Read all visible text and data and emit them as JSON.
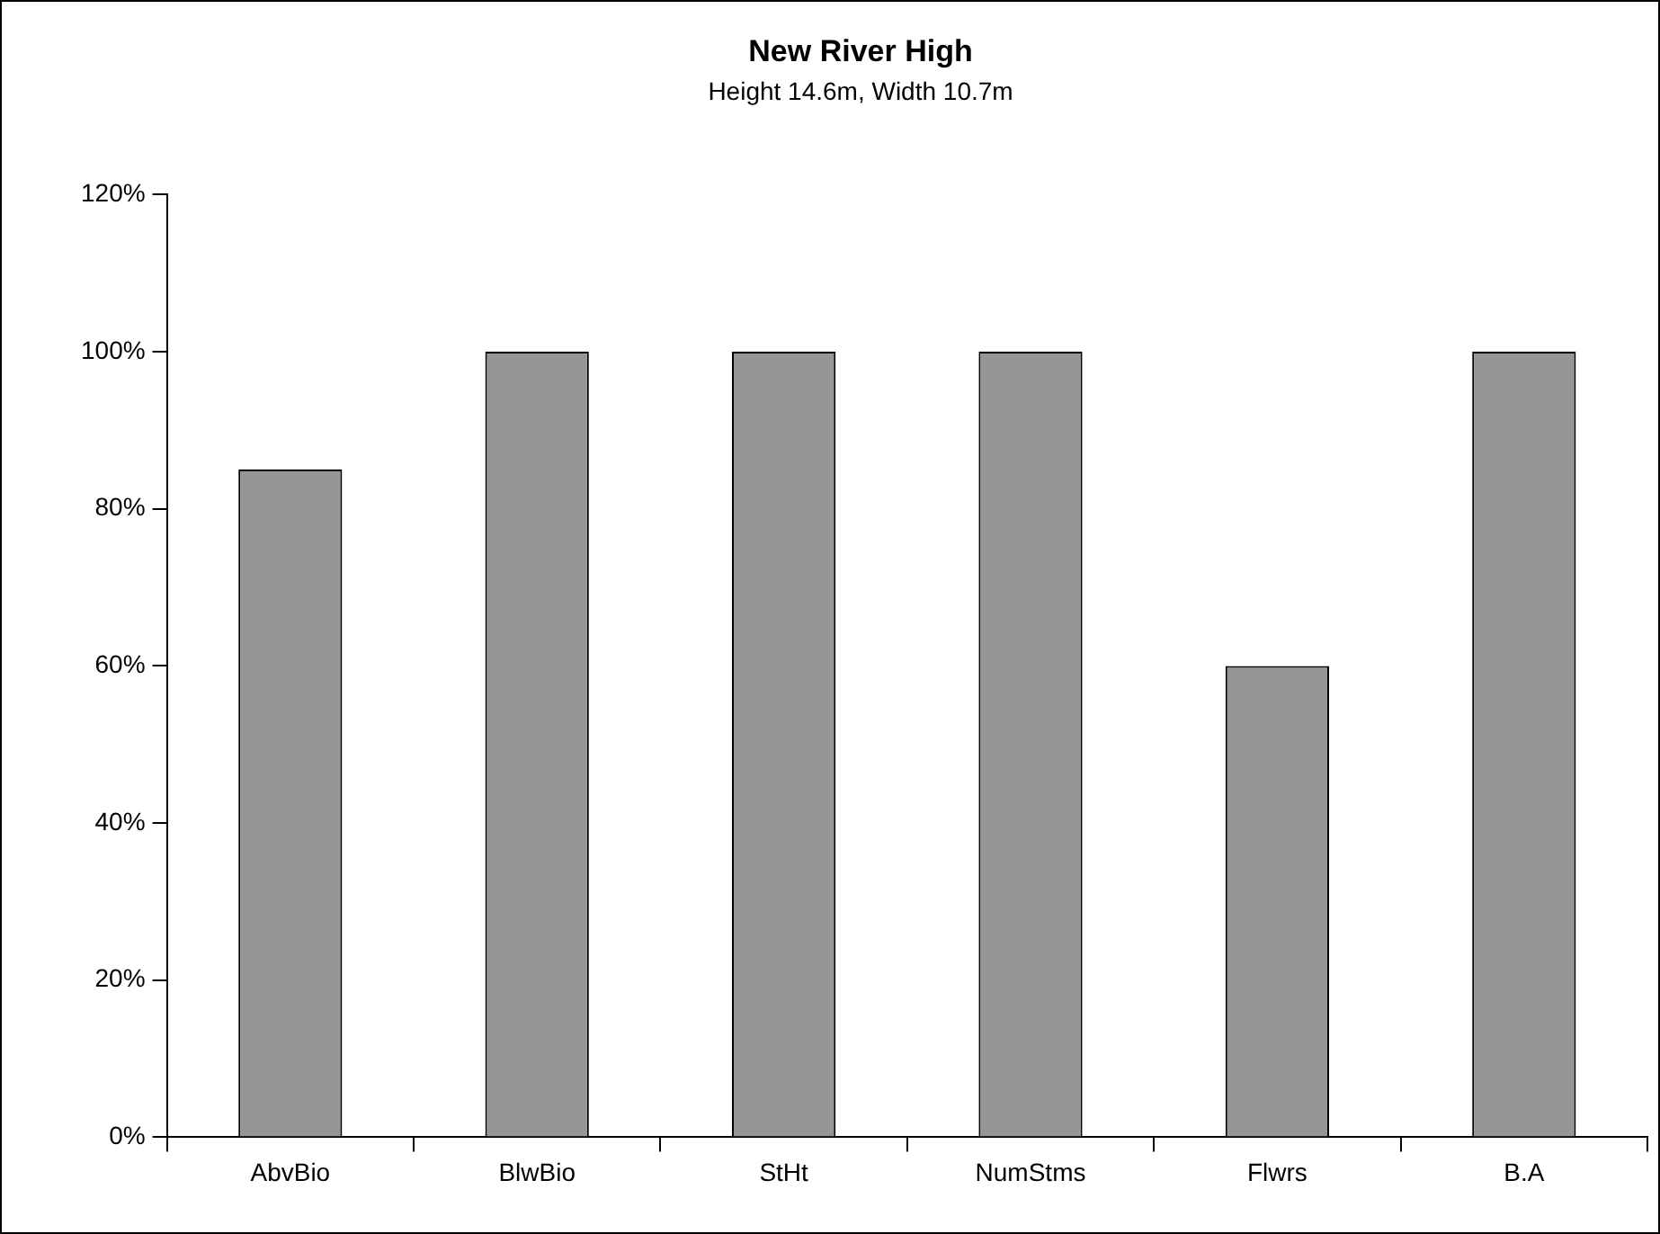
{
  "chart_data": {
    "type": "bar",
    "title": "New River High",
    "subtitle": "Height 14.6m, Width 10.7m",
    "categories": [
      "AbvBio",
      "BlwBio",
      "StHt",
      "NumStms",
      "Flwrs",
      "B.A"
    ],
    "values": [
      85,
      100,
      100,
      100,
      60,
      100
    ],
    "color": "#969696",
    "ylim": [
      0,
      120
    ],
    "yticks": [
      {
        "value": 0,
        "label": "0%"
      },
      {
        "value": 20,
        "label": "20%"
      },
      {
        "value": 40,
        "label": "40%"
      },
      {
        "value": 60,
        "label": "60%"
      },
      {
        "value": 80,
        "label": "80%"
      },
      {
        "value": 100,
        "label": "100%"
      },
      {
        "value": 120,
        "label": "120%"
      }
    ],
    "grid": false,
    "legend": false
  }
}
